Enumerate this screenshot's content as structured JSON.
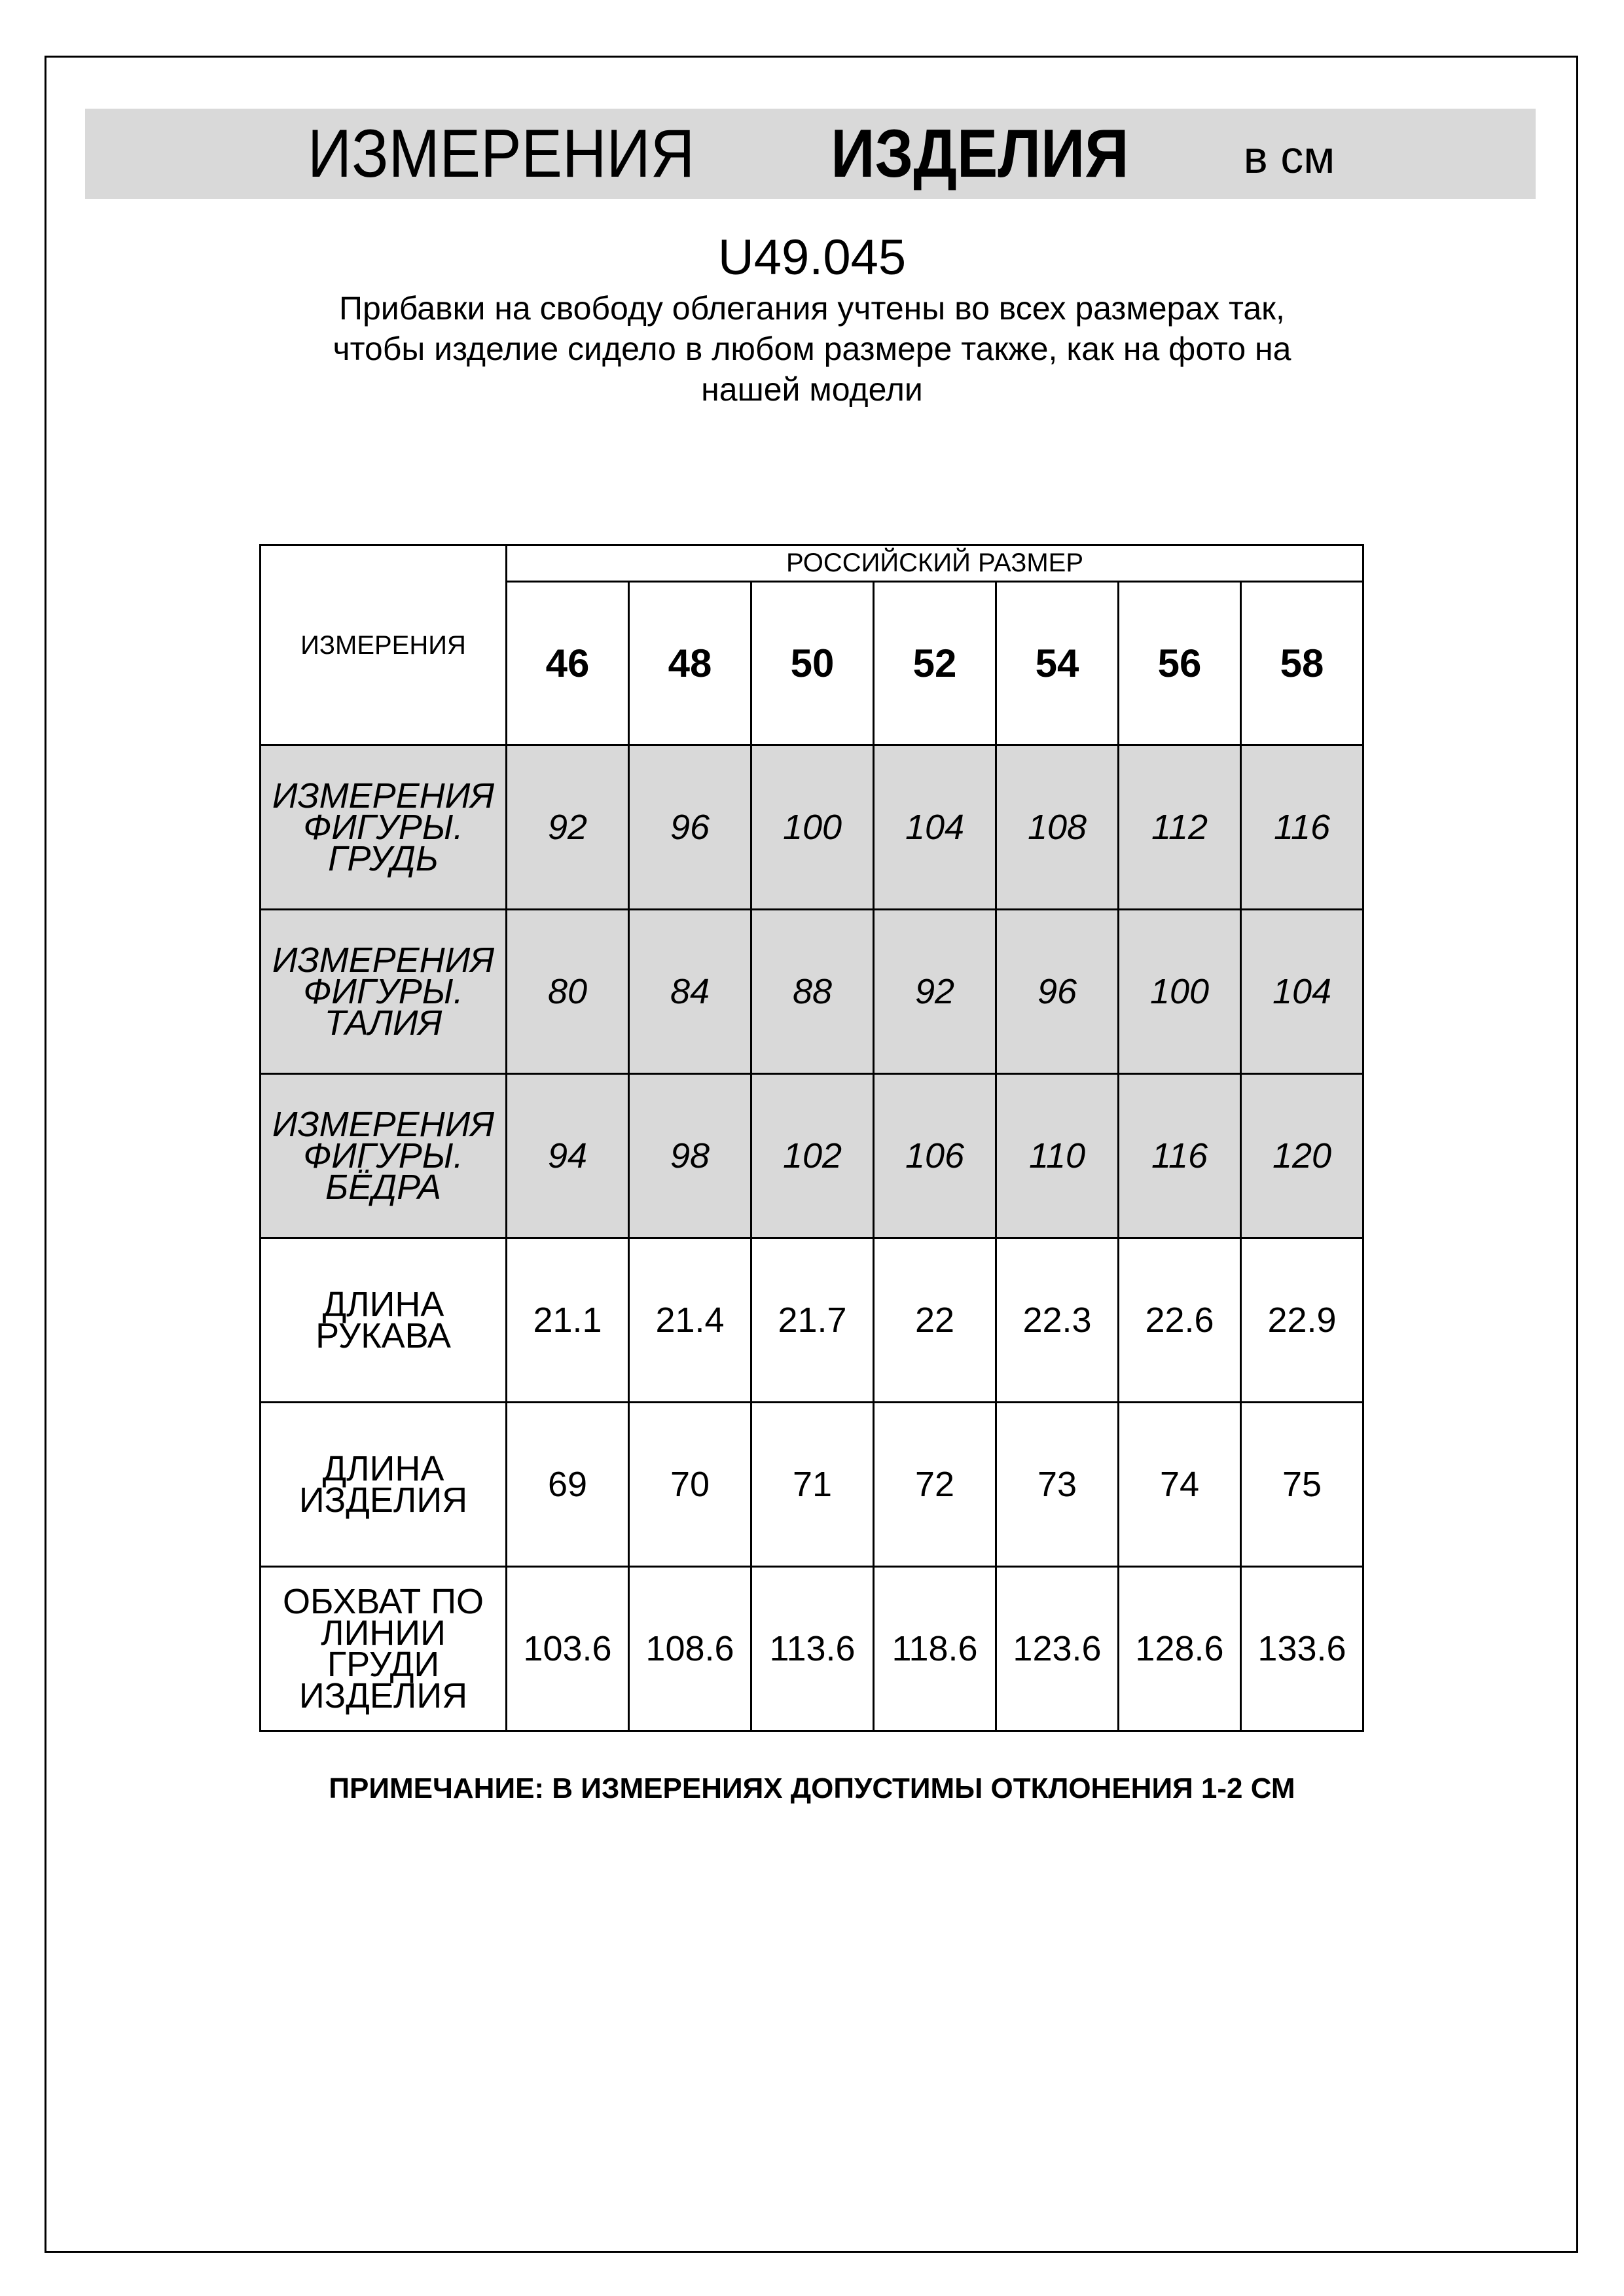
{
  "header": {
    "title_regular": "ИЗМЕРЕНИЯ",
    "title_bold": "ИЗДЕЛИЯ",
    "unit": "в см"
  },
  "code": "U49.045",
  "description": [
    "Прибавки на свободу облегания учтены во всех размерах так,",
    "чтобы изделие сидело в любом размере также, как на фото на",
    "нашей модели"
  ],
  "table": {
    "label_header": "ИЗМЕРЕНИЯ",
    "group_header": "РОССИЙСКИЙ РАЗМЕР",
    "sizes": [
      "46",
      "48",
      "50",
      "52",
      "54",
      "56",
      "58"
    ],
    "rows": [
      {
        "label": "ИЗМЕРЕНИЯ ФИГУРЫ. ГРУДЬ",
        "values": [
          "92",
          "96",
          "100",
          "104",
          "108",
          "112",
          "116"
        ]
      },
      {
        "label": "ИЗМЕРЕНИЯ ФИГУРЫ. ТАЛИЯ",
        "values": [
          "80",
          "84",
          "88",
          "92",
          "96",
          "100",
          "104"
        ]
      },
      {
        "label": "ИЗМЕРЕНИЯ ФИГУРЫ. БЁДРА",
        "values": [
          "94",
          "98",
          "102",
          "106",
          "110",
          "116",
          "120"
        ]
      },
      {
        "label": "ДЛИНА РУКАВА",
        "values": [
          "21.1",
          "21.4",
          "21.7",
          "22",
          "22.3",
          "22.6",
          "22.9"
        ]
      },
      {
        "label": "ДЛИНА ИЗДЕЛИЯ",
        "values": [
          "69",
          "70",
          "71",
          "72",
          "73",
          "74",
          "75"
        ]
      },
      {
        "label": "ОБХВАТ ПО ЛИНИИ ГРУДИ ИЗДЕЛИЯ",
        "values": [
          "103.6",
          "108.6",
          "113.6",
          "118.6",
          "123.6",
          "128.6",
          "133.6"
        ]
      }
    ]
  },
  "note": "ПРИМЕЧАНИЕ: В ИЗМЕРЕНИЯХ ДОПУСТИМЫ ОТКЛОНЕНИЯ 1-2 СМ",
  "colors": {
    "gray": "#d9d9d9"
  }
}
